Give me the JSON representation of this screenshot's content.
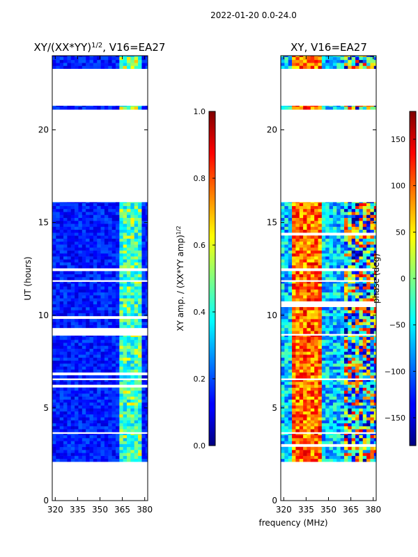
{
  "suptitle": "2022-01-20 0.0-24.0",
  "shared_xlabel": "frequency (MHz)",
  "colors": {
    "frame": "#000000",
    "gap": "#ffffff",
    "background": "#ffffff"
  },
  "chart_data": [
    {
      "type": "heatmap",
      "title_main": "XY/(XX*YY)",
      "title_exp": "1/2",
      "title_tail": ", V16=EA27",
      "xlabel": "",
      "ylabel": "UT (hours)",
      "xlim": [
        318,
        382
      ],
      "ylim": [
        0,
        24
      ],
      "xticks": [
        320,
        335,
        350,
        365,
        380
      ],
      "yticks": [
        0,
        5,
        10,
        15,
        20
      ],
      "colormap": "jet",
      "data_intervals_hours": [
        [
          2.1,
          3.6
        ],
        [
          3.7,
          6.5
        ],
        [
          6.6,
          8.9
        ],
        [
          9.0,
          11.8
        ],
        [
          11.9,
          16.1
        ],
        [
          21.1,
          21.3
        ],
        [
          23.3,
          24.0
        ]
      ],
      "bright_band_mhz": [
        362,
        378
      ],
      "colorbar": {
        "label_main": "XY amp. / (XX*YY amp)",
        "label_exp": "1/2",
        "range": [
          0.0,
          1.0
        ],
        "ticks": [
          "0.0",
          "0.2",
          "0.4",
          "0.6",
          "0.8",
          "1.0"
        ]
      }
    },
    {
      "type": "heatmap",
      "title_main": "XY, V16=EA27",
      "title_exp": "",
      "title_tail": "",
      "xlabel": "frequency (MHz)",
      "ylabel": "",
      "xlim": [
        318,
        382
      ],
      "ylim": [
        0,
        24
      ],
      "xticks": [
        320,
        335,
        350,
        365,
        380
      ],
      "yticks": [
        0,
        5,
        10,
        15,
        20
      ],
      "colormap": "jet",
      "data_intervals_hours": [
        [
          2.1,
          3.6
        ],
        [
          3.7,
          6.5
        ],
        [
          6.6,
          8.9
        ],
        [
          9.0,
          11.8
        ],
        [
          11.9,
          16.1
        ],
        [
          21.1,
          21.3
        ],
        [
          23.3,
          24.0
        ]
      ],
      "hot_band_mhz": [
        326,
        345
      ],
      "colorbar": {
        "label_main": "phase (deg)",
        "label_exp": "",
        "range": [
          -180,
          180
        ],
        "ticks": [
          "−150",
          "−100",
          "−50",
          "0",
          "50",
          "100",
          "150"
        ]
      }
    }
  ]
}
